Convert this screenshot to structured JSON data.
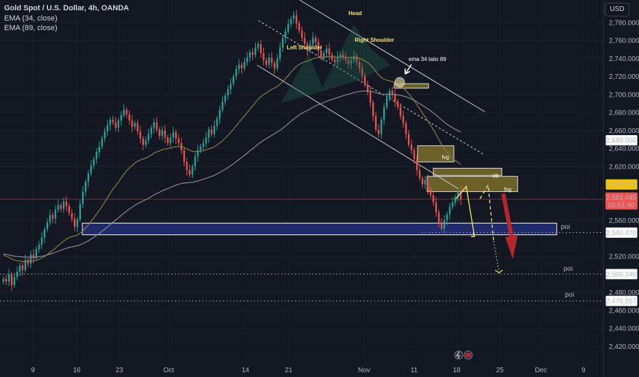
{
  "header": {
    "symbol_line": "Gold Spot / U.S. Dollar, 4h, OANDA",
    "ema1": "EMA (34, close)",
    "ema2": "EMA (89, close)"
  },
  "currency_button": "USD",
  "colors": {
    "background": "#131722",
    "up": "#26a69a",
    "down": "#ef5350",
    "ema34": "#8a8045",
    "ema89": "#8c8c8c",
    "poi_zone": "#1f2b6b",
    "fvg_zone": "#6b6128",
    "current_price": "#ef5350",
    "highlight_price": "#f7c400"
  },
  "chart_data": {
    "type": "candlestick",
    "title": "Gold Spot / U.S. Dollar, 4h, OANDA",
    "series": [
      {
        "name": "EMA (34, close)"
      },
      {
        "name": "EMA (89, close)"
      }
    ],
    "x_tick_labels": [
      "9",
      "16",
      "23",
      "Oct",
      "14",
      "21",
      "Nov",
      "11",
      "18",
      "25",
      "Dec",
      "9"
    ],
    "y_tick_labels": [
      "2,780.000",
      "2,760.000",
      "2,740.000",
      "2,720.000",
      "2,700.000",
      "2,680.000",
      "2,660.000",
      "2,640.000",
      "2,620.000",
      "2,560.000",
      "2,520.000",
      "2,480.000",
      "2,460.000",
      "2,440.000",
      "2,420.000"
    ],
    "ylim": [
      2405,
      2805
    ],
    "price_labels": [
      {
        "value": 2649.06,
        "text": "2,649.060"
      },
      {
        "value": 2599.919,
        "text": "2,599.919"
      },
      {
        "value": 2546.47,
        "text": "2,546.470"
      },
      {
        "value": 2500.34,
        "text": "2,500.340"
      },
      {
        "value": 2470.557,
        "text": "2,470.557"
      }
    ],
    "current_price": {
      "value": 2583.495,
      "text": "2,583.495",
      "countdown": "03:51:40"
    },
    "closes": [
      2495,
      2492,
      2500,
      2488,
      2497,
      2503,
      2510,
      2505,
      2516,
      2512,
      2522,
      2518,
      2528,
      2533,
      2541,
      2550,
      2558,
      2566,
      2562,
      2572,
      2577,
      2573,
      2581,
      2576,
      2568,
      2562,
      2553,
      2561,
      2578,
      2592,
      2603,
      2612,
      2621,
      2628,
      2636,
      2642,
      2651,
      2659,
      2666,
      2672,
      2669,
      2663,
      2671,
      2677,
      2683,
      2678,
      2671,
      2664,
      2668,
      2659,
      2651,
      2644,
      2649,
      2656,
      2663,
      2669,
      2661,
      2654,
      2660,
      2652,
      2646,
      2652,
      2658,
      2651,
      2646,
      2638,
      2625,
      2616,
      2611,
      2620,
      2631,
      2638,
      2642,
      2646,
      2652,
      2661,
      2656,
      2665,
      2673,
      2683,
      2692,
      2699,
      2706,
      2712,
      2720,
      2728,
      2733,
      2729,
      2736,
      2741,
      2747,
      2744,
      2752,
      2756,
      2746,
      2738,
      2733,
      2741,
      2735,
      2729,
      2740,
      2752,
      2763,
      2770,
      2778,
      2784,
      2788,
      2779,
      2771,
      2763,
      2756,
      2749,
      2756,
      2763,
      2758,
      2749,
      2741,
      2746,
      2751,
      2744,
      2739,
      2736,
      2742,
      2745,
      2741,
      2738,
      2734,
      2738,
      2743,
      2736,
      2729,
      2721,
      2711,
      2703,
      2691,
      2676,
      2661,
      2656,
      2672,
      2686,
      2696,
      2704,
      2700,
      2692,
      2686,
      2676,
      2668,
      2656,
      2644,
      2638,
      2628,
      2616,
      2607,
      2600,
      2605,
      2595,
      2588,
      2580,
      2569,
      2558,
      2551,
      2560,
      2567,
      2575,
      2580,
      2586,
      2592,
      2583
    ],
    "annotations": {
      "head": "Head",
      "left_shoulder": "Left Shoulder",
      "right_shoulder": "Right Shoulder",
      "ema_note": "ema 34 taiio 89",
      "fvg_upper": "fvg",
      "ob": "ob",
      "fvg_lower": "fvg",
      "poi_1": "poi",
      "poi_2": "poi",
      "poi_3": "poi"
    }
  }
}
